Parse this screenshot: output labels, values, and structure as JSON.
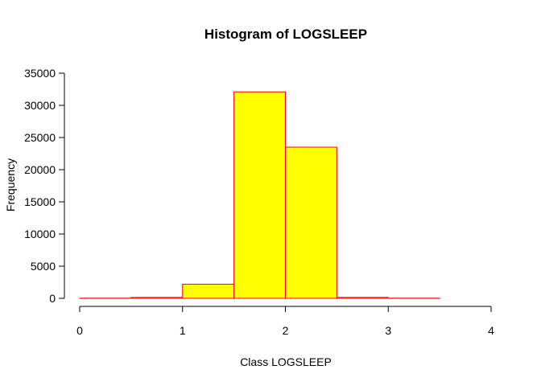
{
  "chart_data": {
    "type": "bar",
    "title": "Histogram of LOGSLEEP",
    "xlabel": "Class LOGSLEEP",
    "ylabel": "Frequency",
    "bins": [
      {
        "x0": 0.0,
        "x1": 0.5,
        "count": 30
      },
      {
        "x0": 0.5,
        "x1": 1.0,
        "count": 150
      },
      {
        "x0": 1.0,
        "x1": 1.5,
        "count": 2200
      },
      {
        "x0": 1.5,
        "x1": 2.0,
        "count": 32100
      },
      {
        "x0": 2.0,
        "x1": 2.5,
        "count": 23500
      },
      {
        "x0": 2.5,
        "x1": 3.0,
        "count": 150
      },
      {
        "x0": 3.0,
        "x1": 3.5,
        "count": 30
      }
    ],
    "xlim": [
      0,
      4
    ],
    "ylim": [
      0,
      35000
    ],
    "xticks": [
      "0",
      "1",
      "2",
      "3",
      "4"
    ],
    "yticks": [
      "0",
      "5000",
      "10000",
      "15000",
      "20000",
      "25000",
      "30000",
      "35000"
    ],
    "bar_fill": "#ffff00",
    "bar_stroke": "#ff0000",
    "grid": false,
    "legend": "none"
  }
}
